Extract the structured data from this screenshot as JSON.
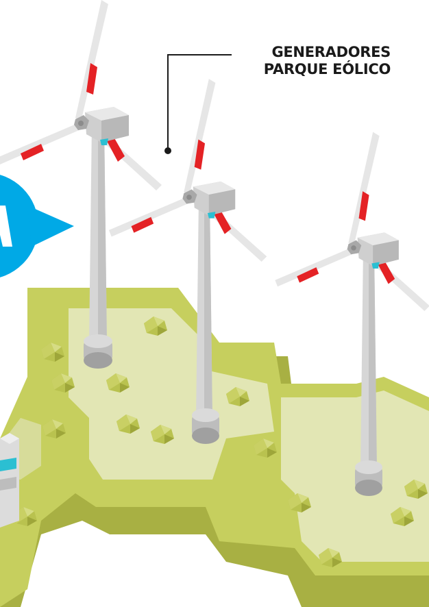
{
  "callout": {
    "line1": "GENERADORES",
    "line2": "PARQUE EÓLICO"
  },
  "colors": {
    "ground_top": "#e2e6b4",
    "ground_side": "#c6cf5e",
    "ground_shadow": "#a8b043",
    "turbine_light": "#e6e6e6",
    "turbine_mid": "#cfcfcf",
    "turbine_dark": "#a8a8a8",
    "blade_red": "#e42225",
    "bubble_blue": "#00a9e6",
    "accent_cyan": "#2bbfd2",
    "callout_line": "#1a1a1a"
  },
  "icons": [
    "wind-turbine",
    "speech-bubble",
    "rock",
    "building"
  ]
}
